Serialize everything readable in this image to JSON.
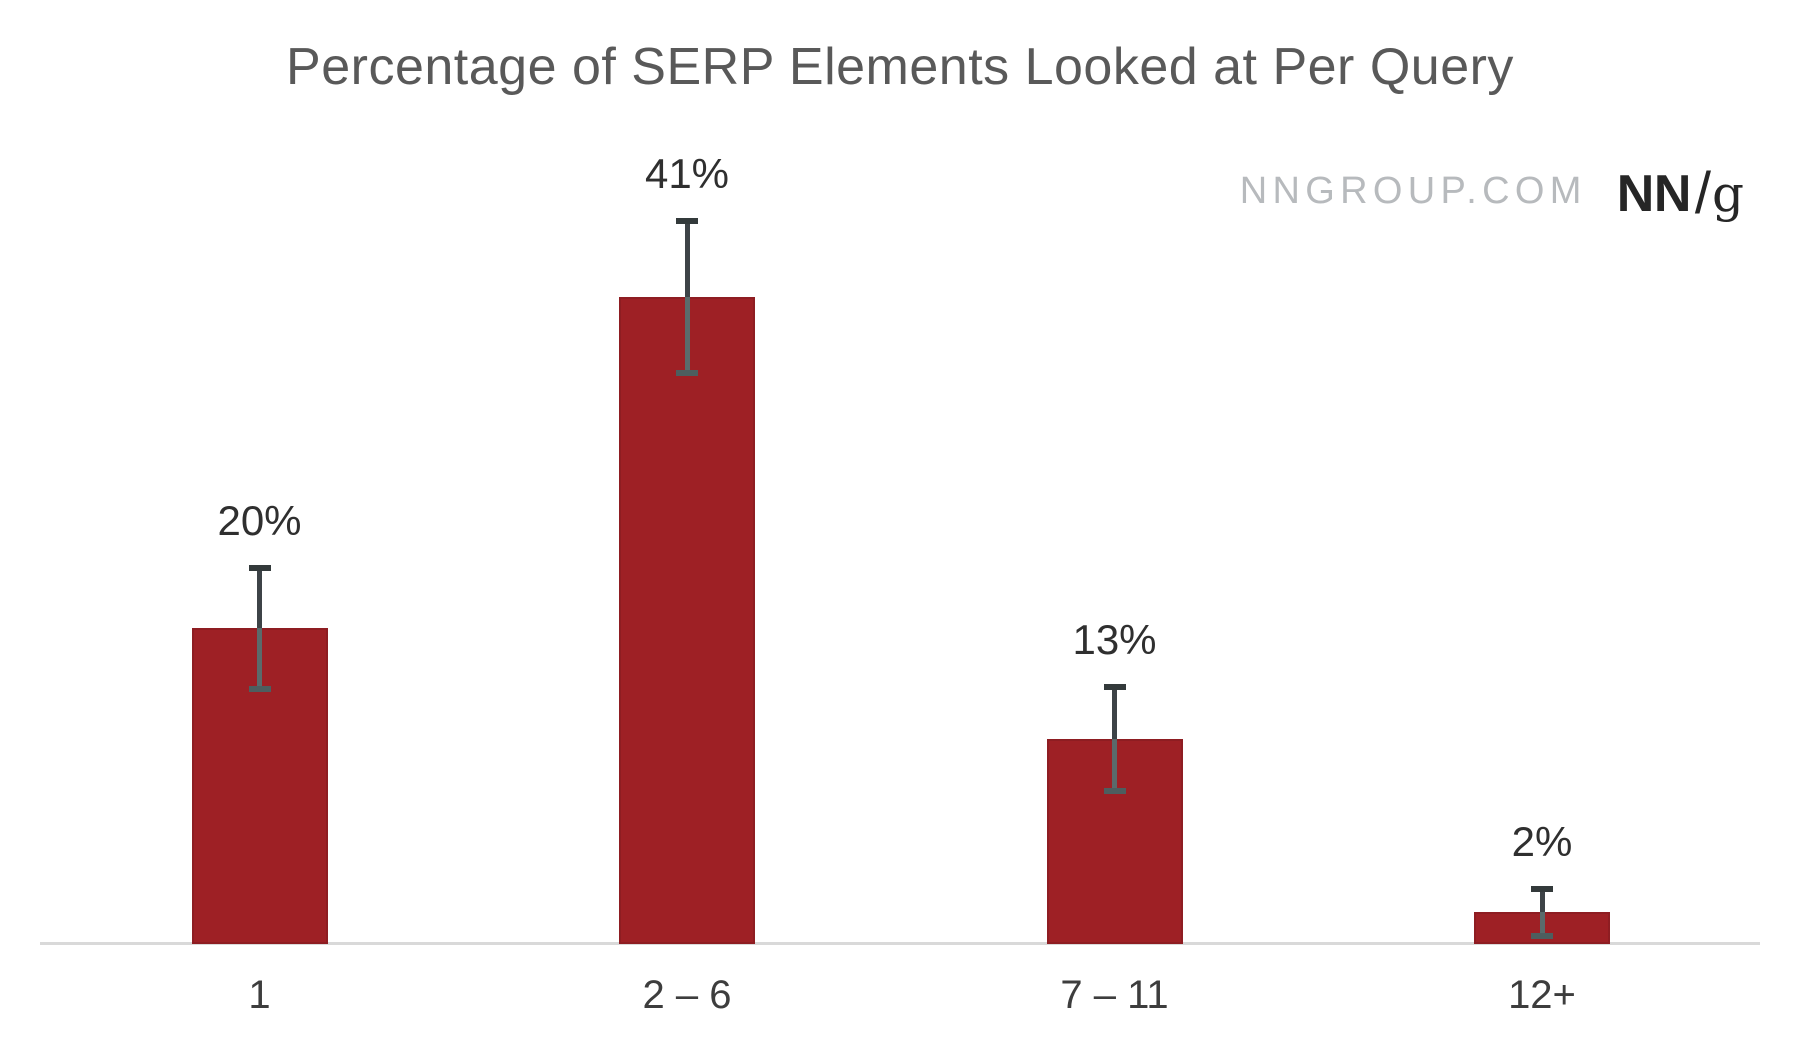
{
  "title": "Percentage of SERP Elements Looked at Per Query",
  "branding": {
    "site": "NNGROUP.COM",
    "logo_nn": "NN",
    "logo_slash": "/",
    "logo_g": "g"
  },
  "colors": {
    "bar": "#9e2025",
    "bar_border": "#8e1d22",
    "axis_line": "#d9d9d9",
    "title_text": "#595959",
    "value_label": "#2f2f2f",
    "category_label": "#3d3d3d",
    "brand_gray": "#b7babd",
    "logo_dark": "#262626",
    "error_upper": "#3d4347",
    "error_lower": "#5a6a6b",
    "error_cap_top": "#333a3b",
    "error_cap_bottom": "#4d5e5f"
  },
  "chart_data": {
    "type": "bar",
    "title": "Percentage of SERP Elements Looked at Per Query",
    "categories": [
      "1",
      "2 – 6",
      "7 – 11",
      "12+"
    ],
    "values": [
      20,
      41,
      13,
      2
    ],
    "value_labels": [
      "20%",
      "41%",
      "13%",
      "2%"
    ],
    "error_bars": {
      "type": "symmetric",
      "values": [
        4,
        5,
        3.5,
        1.7
      ]
    },
    "xlabel": "",
    "ylabel": "",
    "ylim": [
      0,
      50
    ],
    "grid": false,
    "legend": false,
    "series_color": "#9e2025",
    "annotations": [
      "NNGROUP.COM",
      "NN/g"
    ]
  }
}
